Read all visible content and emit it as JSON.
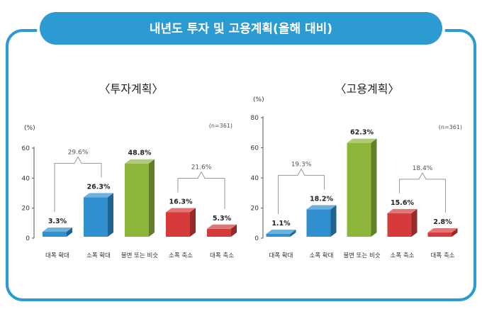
{
  "title": "내년도 투자 및 고용계획(올해 대비)",
  "colors": {
    "frame": "#2b9bd1",
    "blue": "#2f8fcf",
    "green": "#8db53a",
    "red": "#d63a3a",
    "bracket": "#9a9a9a"
  },
  "chart_data": [
    {
      "type": "bar",
      "title": "〈투자계획〉",
      "ylabel": "(%)",
      "note": "(n=361)",
      "ylim": [
        0,
        60
      ],
      "yticks": [
        "0",
        "20",
        "40",
        "60"
      ],
      "categories": [
        "대폭 확대",
        "소폭 확대",
        "불변 또는 비슷",
        "소폭 축소",
        "대폭 축소"
      ],
      "values": [
        3.3,
        26.3,
        48.8,
        16.3,
        5.3
      ],
      "value_labels": [
        "3.3%",
        "26.3%",
        "48.8%",
        "16.3%",
        "5.3%"
      ],
      "colors": [
        "blue",
        "blue",
        "green",
        "red",
        "red"
      ],
      "groups": [
        {
          "label": "29.6%",
          "from": 0,
          "to": 1
        },
        {
          "label": "21.6%",
          "from": 3,
          "to": 4
        }
      ]
    },
    {
      "type": "bar",
      "title": "〈고용계획〉",
      "ylabel": "(%)",
      "note": "(n=361)",
      "ylim": [
        0,
        80
      ],
      "yticks": [
        "0",
        "20",
        "40",
        "60",
        "80"
      ],
      "categories": [
        "대폭 확대",
        "소폭 확대",
        "불변 또는 비슷",
        "소폭 축소",
        "대폭 축소"
      ],
      "values": [
        1.1,
        18.2,
        62.3,
        15.6,
        2.8
      ],
      "value_labels": [
        "1.1%",
        "18.2%",
        "62.3%",
        "15.6%",
        "2.8%"
      ],
      "colors": [
        "blue",
        "blue",
        "green",
        "red",
        "red"
      ],
      "groups": [
        {
          "label": "19.3%",
          "from": 0,
          "to": 1
        },
        {
          "label": "18.4%",
          "from": 3,
          "to": 4
        }
      ]
    }
  ]
}
